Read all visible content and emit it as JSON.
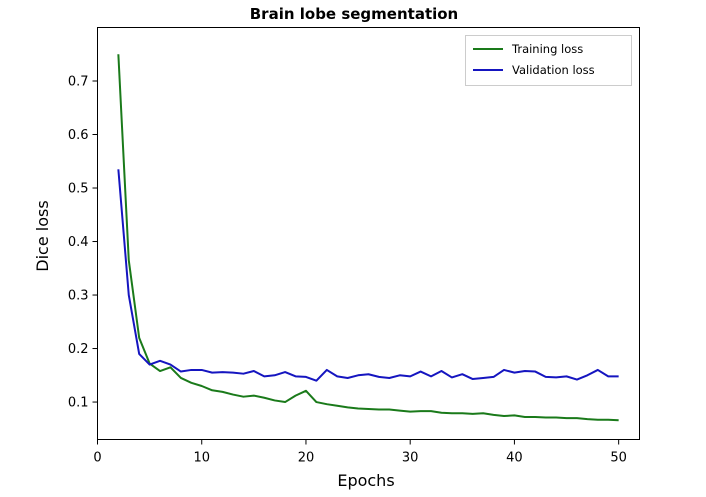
{
  "chart_data": {
    "type": "line",
    "title": "Brain lobe segmentation",
    "xlabel": "Epochs",
    "ylabel": "Dice loss",
    "xlim": [
      0,
      52
    ],
    "ylim": [
      0.03,
      0.8
    ],
    "xticks": [
      0,
      10,
      20,
      30,
      40,
      50
    ],
    "yticks": [
      0.1,
      0.2,
      0.3,
      0.4,
      0.5,
      0.6,
      0.7
    ],
    "grid": false,
    "legend_position": "top-right",
    "series": [
      {
        "name": "Training loss",
        "color": "#1a7a1a",
        "x": [
          2,
          3,
          4,
          5,
          6,
          7,
          8,
          9,
          10,
          11,
          12,
          13,
          14,
          15,
          16,
          17,
          18,
          19,
          20,
          21,
          22,
          23,
          24,
          25,
          26,
          27,
          28,
          29,
          30,
          31,
          32,
          33,
          34,
          35,
          36,
          37,
          38,
          39,
          40,
          41,
          42,
          43,
          44,
          45,
          46,
          47,
          48,
          49,
          50
        ],
        "y": [
          0.75,
          0.365,
          0.22,
          0.172,
          0.158,
          0.165,
          0.145,
          0.136,
          0.13,
          0.122,
          0.119,
          0.114,
          0.11,
          0.112,
          0.108,
          0.103,
          0.1,
          0.112,
          0.121,
          0.1,
          0.096,
          0.093,
          0.09,
          0.088,
          0.087,
          0.086,
          0.086,
          0.084,
          0.082,
          0.083,
          0.083,
          0.08,
          0.079,
          0.079,
          0.078,
          0.079,
          0.076,
          0.074,
          0.075,
          0.072,
          0.072,
          0.071,
          0.071,
          0.07,
          0.07,
          0.068,
          0.067,
          0.067,
          0.066
        ]
      },
      {
        "name": "Validation loss",
        "color": "#1515c0",
        "x": [
          2,
          3,
          4,
          5,
          6,
          7,
          8,
          9,
          10,
          11,
          12,
          13,
          14,
          15,
          16,
          17,
          18,
          19,
          20,
          21,
          22,
          23,
          24,
          25,
          26,
          27,
          28,
          29,
          30,
          31,
          32,
          33,
          34,
          35,
          36,
          37,
          38,
          39,
          40,
          41,
          42,
          43,
          44,
          45,
          46,
          47,
          48,
          49,
          50
        ],
        "y": [
          0.535,
          0.3,
          0.19,
          0.17,
          0.177,
          0.17,
          0.157,
          0.16,
          0.16,
          0.155,
          0.156,
          0.155,
          0.153,
          0.158,
          0.148,
          0.15,
          0.156,
          0.148,
          0.147,
          0.14,
          0.16,
          0.148,
          0.145,
          0.15,
          0.152,
          0.147,
          0.145,
          0.15,
          0.148,
          0.157,
          0.148,
          0.158,
          0.146,
          0.152,
          0.143,
          0.145,
          0.147,
          0.16,
          0.155,
          0.158,
          0.157,
          0.147,
          0.146,
          0.148,
          0.142,
          0.15,
          0.16,
          0.148,
          0.148
        ]
      }
    ]
  }
}
